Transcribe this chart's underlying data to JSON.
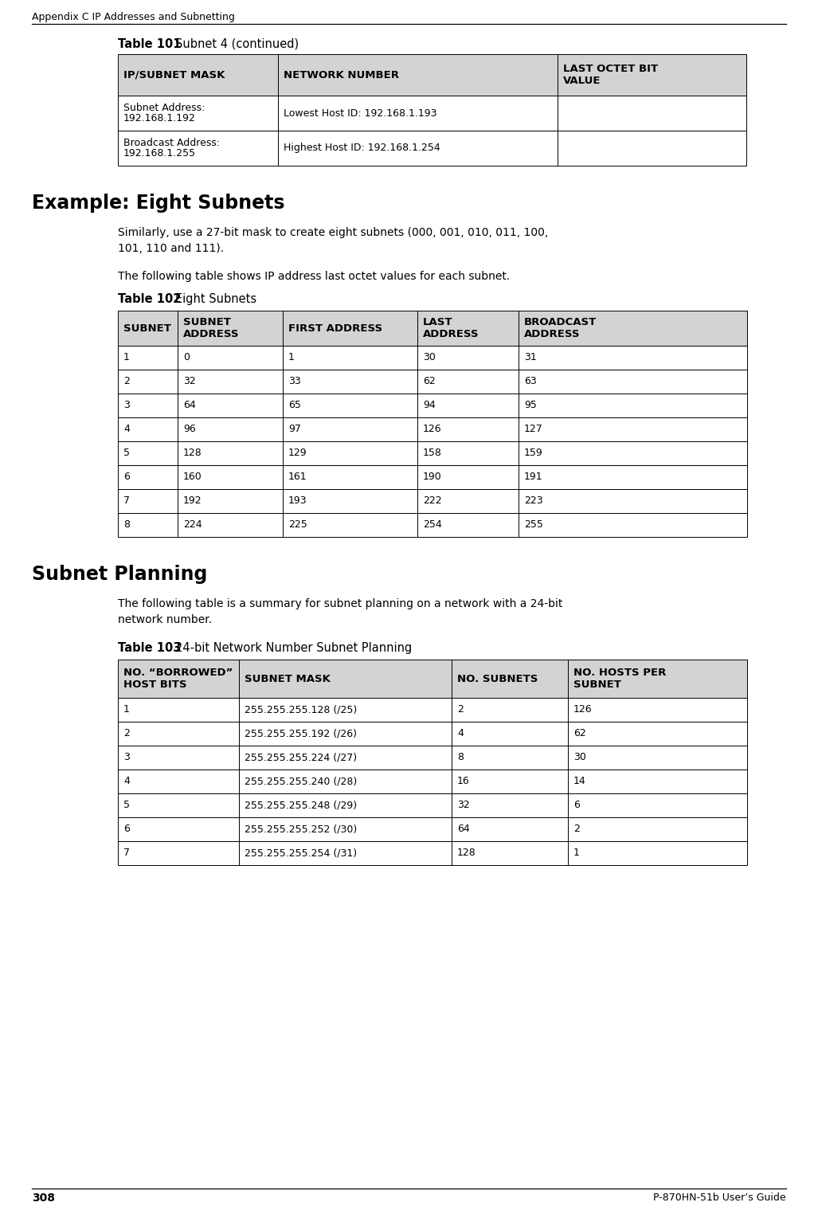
{
  "bg_color": "#ffffff",
  "header_text": "Appendix C IP Addresses and Subnetting",
  "page_number": "308",
  "footer_text": "P-870HN-51b User’s Guide",
  "table101_title_bold": "Table 101",
  "table101_title_normal": "Subnet 4 (continued)",
  "table101_headers": [
    "IP/SUBNET MASK",
    "NETWORK NUMBER",
    "LAST OCTET BIT\nVALUE"
  ],
  "table101_rows": [
    [
      "Subnet Address:\n192.168.1.192",
      "Lowest Host ID: 192.168.1.193",
      ""
    ],
    [
      "Broadcast Address:\n192.168.1.255",
      "Highest Host ID: 192.168.1.254",
      ""
    ]
  ],
  "section1_title": "Example: Eight Subnets",
  "section1_para1": "Similarly, use a 27-bit mask to create eight subnets (000, 001, 010, 011, 100,\n101, 110 and 111).",
  "section1_para2": "The following table shows IP address last octet values for each subnet.",
  "table102_title_bold": "Table 102",
  "table102_title_normal": "Eight Subnets",
  "table102_headers": [
    "SUBNET",
    "SUBNET\nADDRESS",
    "FIRST ADDRESS",
    "LAST\nADDRESS",
    "BROADCAST\nADDRESS"
  ],
  "table102_rows": [
    [
      "1",
      "0",
      "1",
      "30",
      "31"
    ],
    [
      "2",
      "32",
      "33",
      "62",
      "63"
    ],
    [
      "3",
      "64",
      "65",
      "94",
      "95"
    ],
    [
      "4",
      "96",
      "97",
      "126",
      "127"
    ],
    [
      "5",
      "128",
      "129",
      "158",
      "159"
    ],
    [
      "6",
      "160",
      "161",
      "190",
      "191"
    ],
    [
      "7",
      "192",
      "193",
      "222",
      "223"
    ],
    [
      "8",
      "224",
      "225",
      "254",
      "255"
    ]
  ],
  "section2_title": "Subnet Planning",
  "section2_para": "The following table is a summary for subnet planning on a network with a 24-bit\nnetwork number.",
  "table103_title_bold": "Table 103",
  "table103_title_normal": "24-bit Network Number Subnet Planning",
  "table103_headers": [
    "NO. “BORROWED”\nHOST BITS",
    "SUBNET MASK",
    "NO. SUBNETS",
    "NO. HOSTS PER\nSUBNET"
  ],
  "table103_rows": [
    [
      "1",
      "255.255.255.128 (/25)",
      "2",
      "126"
    ],
    [
      "2",
      "255.255.255.192 (/26)",
      "4",
      "62"
    ],
    [
      "3",
      "255.255.255.224 (/27)",
      "8",
      "30"
    ],
    [
      "4",
      "255.255.255.240 (/28)",
      "16",
      "14"
    ],
    [
      "5",
      "255.255.255.248 (/29)",
      "32",
      "6"
    ],
    [
      "6",
      "255.255.255.252 (/30)",
      "64",
      "2"
    ],
    [
      "7",
      "255.255.255.254 (/31)",
      "128",
      "1"
    ]
  ],
  "header_bg": "#d3d3d3",
  "border_color": "#000000"
}
